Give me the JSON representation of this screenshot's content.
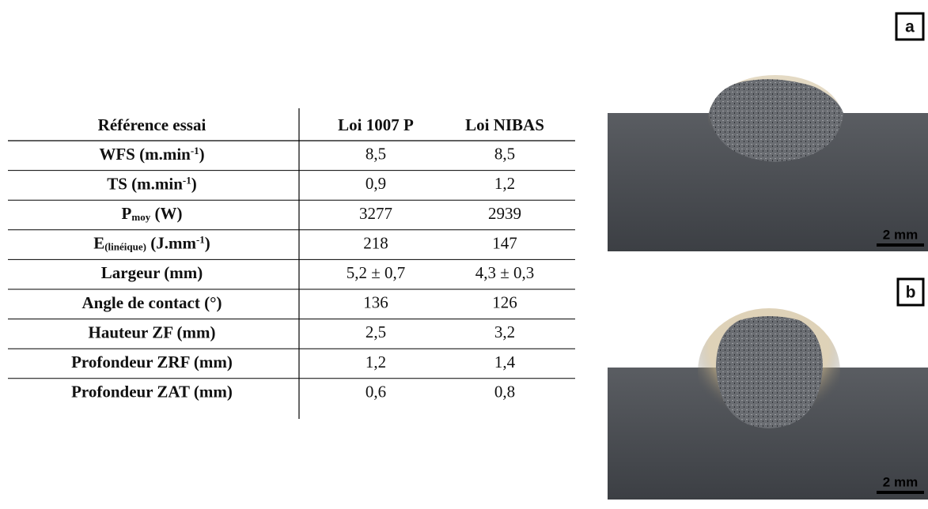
{
  "table": {
    "header": [
      "Référence essai",
      "Loi 1007 P",
      "Loi NIBAS"
    ],
    "rows": [
      {
        "label": [
          {
            "text": "WFS (m.min"
          },
          {
            "text": "-1",
            "pos": "sup"
          },
          {
            "text": ")"
          }
        ],
        "cells": [
          "8,5",
          "8,5"
        ]
      },
      {
        "label": [
          {
            "text": "TS (m.min"
          },
          {
            "text": "-1",
            "pos": "sup"
          },
          {
            "text": ")"
          }
        ],
        "cells": [
          "0,9",
          "1,2"
        ]
      },
      {
        "label": [
          {
            "text": "P"
          },
          {
            "text": "moy",
            "pos": "sub"
          },
          {
            "text": " (W)"
          }
        ],
        "cells": [
          "3277",
          "2939"
        ]
      },
      {
        "label": [
          {
            "text": "E"
          },
          {
            "text": "(linéique)",
            "pos": "sub"
          },
          {
            "text": " (J.mm"
          },
          {
            "text": "-1",
            "pos": "sup"
          },
          {
            "text": ")"
          }
        ],
        "cells": [
          "218",
          "147"
        ]
      },
      {
        "label": [
          {
            "text": "Largeur (mm)"
          }
        ],
        "cells": [
          "5,2 ± 0,7",
          "4,3 ± 0,3"
        ]
      },
      {
        "label": [
          {
            "text": "Angle de contact (°)"
          }
        ],
        "cells": [
          "136",
          "126"
        ]
      },
      {
        "label": [
          {
            "text": "Hauteur ZF (mm)"
          }
        ],
        "cells": [
          "2,5",
          "3,2"
        ]
      },
      {
        "label": [
          {
            "text": "Profondeur ZRF (mm)"
          }
        ],
        "cells": [
          "1,2",
          "1,4"
        ]
      },
      {
        "label": [
          {
            "text": "Profondeur ZAT (mm)"
          }
        ],
        "cells": [
          "0,6",
          "0,8"
        ]
      }
    ]
  },
  "figures": [
    {
      "panel": "a",
      "scale": "2 mm"
    },
    {
      "panel": "b",
      "scale": "2 mm"
    }
  ]
}
